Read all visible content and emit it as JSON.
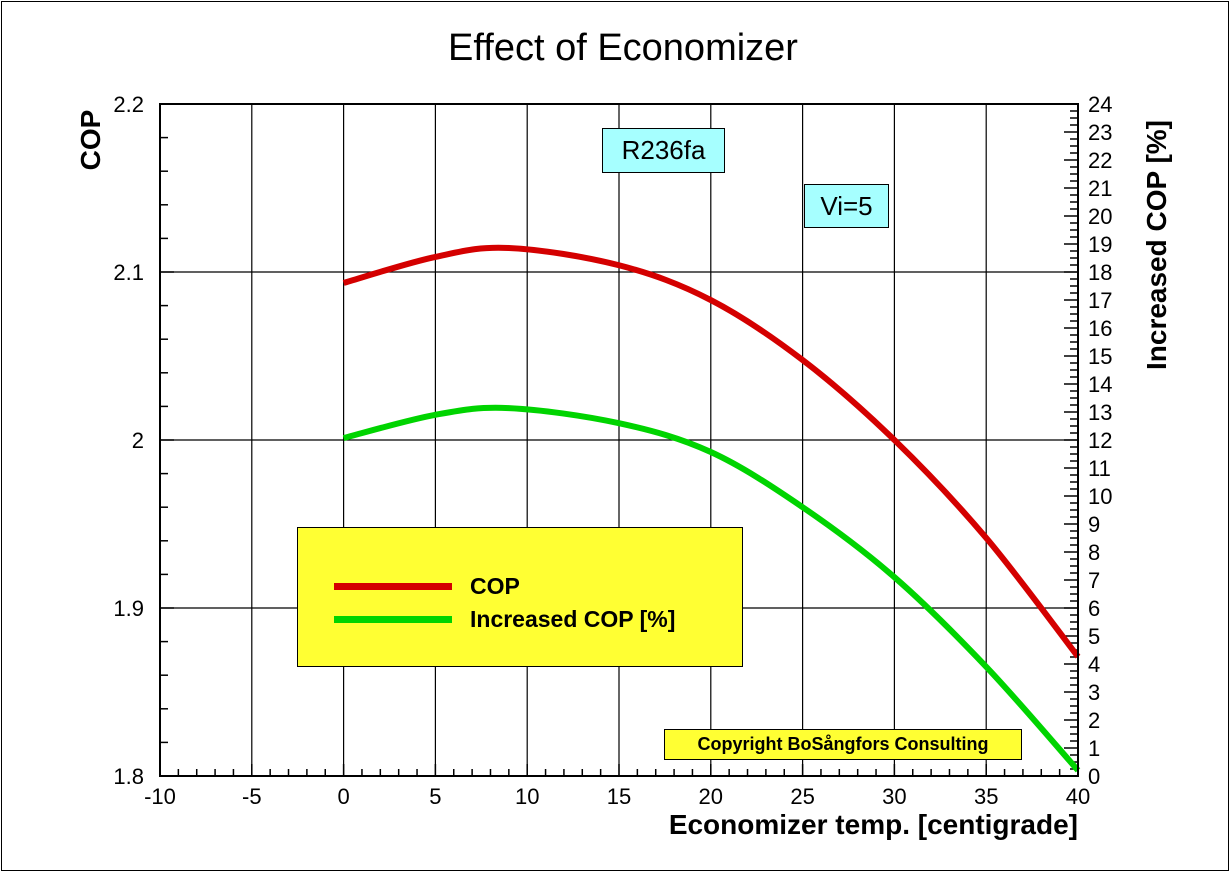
{
  "chart_data": {
    "type": "line",
    "title": "Effect of Economizer",
    "xlabel": "Economizer temp. [centigrade]",
    "ylabel": "COP",
    "y2label": "Increased COP [%]",
    "xlim": [
      -10,
      40
    ],
    "ylim": [
      1.8,
      2.2
    ],
    "y2lim": [
      0,
      24
    ],
    "xticks": [
      -10,
      -5,
      0,
      5,
      10,
      15,
      20,
      25,
      30,
      35,
      40
    ],
    "yticks": [
      "1.8",
      "1.9",
      "2",
      "2.1",
      "2.2"
    ],
    "y2ticks": [
      0,
      1,
      2,
      3,
      4,
      5,
      6,
      7,
      8,
      9,
      10,
      11,
      12,
      13,
      14,
      15,
      16,
      17,
      18,
      19,
      20,
      21,
      22,
      23,
      24
    ],
    "grid": true,
    "series": [
      {
        "name": "COP",
        "axis": "left",
        "color": "#d40000",
        "x": [
          0,
          5,
          9,
          15,
          20,
          25,
          30,
          35,
          40
        ],
        "y": [
          2.0935,
          2.109,
          2.1143,
          2.104,
          2.0833,
          2.0476,
          2.0,
          1.9417,
          1.871
        ]
      },
      {
        "name": "Increased COP [%]",
        "axis": "right",
        "color": "#00d400",
        "x": [
          0,
          5,
          9,
          15,
          20,
          25,
          30,
          35,
          40
        ],
        "y": [
          12.07,
          12.9,
          13.14,
          12.6,
          11.57,
          9.6,
          7.1,
          3.9,
          0.2
        ]
      }
    ],
    "legend_position": "center-left",
    "annotations": [
      "R236fa",
      "Vi=5",
      "Copyright BoSångfors Consulting"
    ]
  }
}
